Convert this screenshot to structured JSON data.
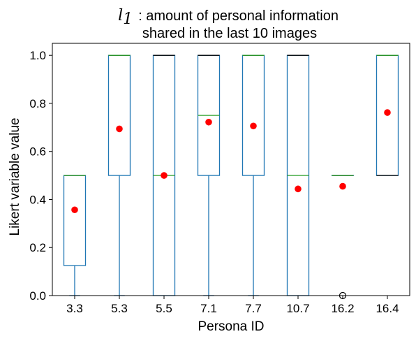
{
  "chart_data": {
    "type": "box",
    "title": {
      "math_symbol": "l",
      "math_subscript": "1",
      "line1": ": amount of personal information",
      "line2": "shared in the last 10 images"
    },
    "xlabel": "Persona ID",
    "ylabel": "Likert variable value",
    "ylim": [
      0.0,
      1.05
    ],
    "yticks": [
      "0.0",
      "0.2",
      "0.4",
      "0.6",
      "0.8",
      "1.0"
    ],
    "grid": false,
    "categories": [
      "3.3",
      "5.3",
      "5.5",
      "7.1",
      "7.7",
      "10.7",
      "16.2",
      "16.4"
    ],
    "boxes": [
      {
        "whisker_low": 0.0,
        "q1": 0.125,
        "median": 0.5,
        "q3": 0.5,
        "whisker_high": 0.5,
        "mean": 0.357,
        "outliers": []
      },
      {
        "whisker_low": 0.0,
        "q1": 0.5,
        "median": 1.0,
        "q3": 1.0,
        "whisker_high": 1.0,
        "mean": 0.694,
        "outliers": []
      },
      {
        "whisker_low": 0.0,
        "q1": 0.0,
        "median": 0.5,
        "q3": 1.0,
        "whisker_high": 1.0,
        "mean": 0.5,
        "outliers": []
      },
      {
        "whisker_low": 0.0,
        "q1": 0.5,
        "median": 0.75,
        "q3": 1.0,
        "whisker_high": 1.0,
        "mean": 0.722,
        "outliers": []
      },
      {
        "whisker_low": 0.0,
        "q1": 0.5,
        "median": 1.0,
        "q3": 1.0,
        "whisker_high": 1.0,
        "mean": 0.706,
        "outliers": []
      },
      {
        "whisker_low": 0.0,
        "q1": 0.0,
        "median": 0.5,
        "q3": 1.0,
        "whisker_high": 1.0,
        "mean": 0.444,
        "outliers": []
      },
      {
        "whisker_low": 0.5,
        "q1": 0.5,
        "median": 0.5,
        "q3": 0.5,
        "whisker_high": 0.5,
        "mean": 0.455,
        "outliers": [
          0.0
        ]
      },
      {
        "whisker_low": 0.5,
        "q1": 0.5,
        "median": 1.0,
        "q3": 1.0,
        "whisker_high": 1.0,
        "mean": 0.762,
        "outliers": []
      }
    ],
    "colors": {
      "box": "#1f77b4",
      "median": "#2ca02c",
      "mean": "#ff0000",
      "outlier": "#000000",
      "axes": "#000000"
    }
  }
}
